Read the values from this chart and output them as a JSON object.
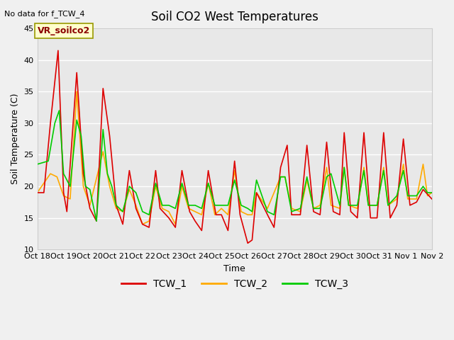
{
  "title": "Soil CO2 West Temperatures",
  "no_data_label": "No data for f_TCW_4",
  "ylabel": "Soil Temperature (C)",
  "xlabel": "Time",
  "ylim": [
    10,
    45
  ],
  "bg_color": "#f0f0f0",
  "plot_bg_color": "#e8e8e8",
  "legend_box_color": "#ffffcc",
  "legend_box_edge": "#999900",
  "annotation_text": "VR_soilco2",
  "annotation_bg": "#ffffcc",
  "annotation_edge": "#999900",
  "series_colors": {
    "TCW_1": "#dd0000",
    "TCW_2": "#ffaa00",
    "TCW_3": "#00cc00"
  },
  "xtick_labels": [
    "Oct 18",
    "Oct 19",
    "Oct 20",
    "Oct 21",
    "Oct 22",
    "Oct 23",
    "Oct 24",
    "Oct 25",
    "Oct 26",
    "Oct 27",
    "Oct 28",
    "Oct 29",
    "Oct 30",
    "Oct 31",
    "Nov 1",
    "Nov 2"
  ],
  "xtick_positions": [
    0,
    24,
    48,
    72,
    96,
    120,
    144,
    168,
    192,
    216,
    240,
    264,
    288,
    312,
    336,
    360
  ]
}
